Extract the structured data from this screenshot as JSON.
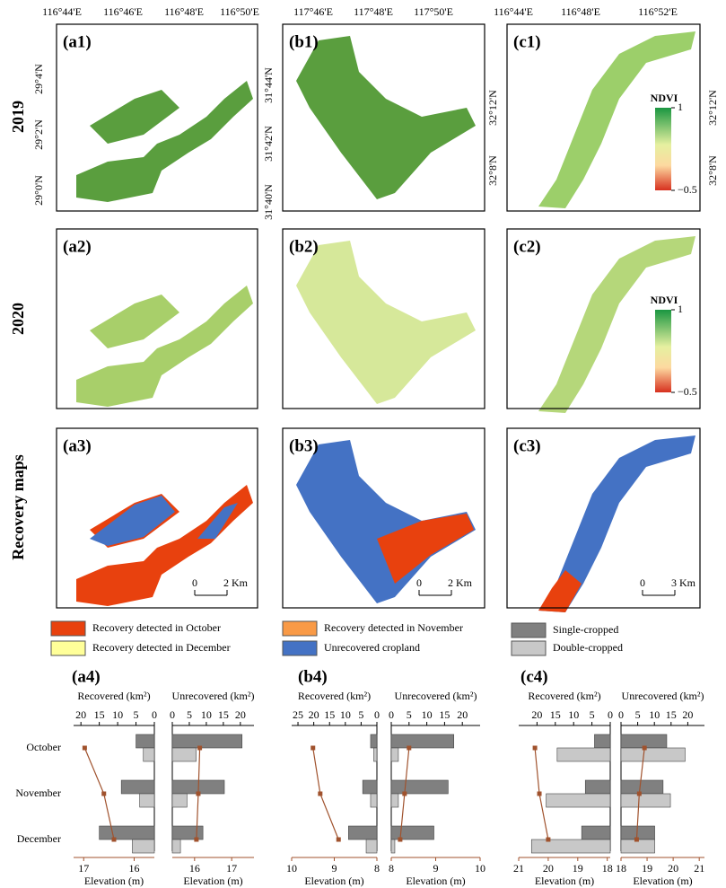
{
  "row_labels": [
    "2019",
    "2020",
    "Recovery maps"
  ],
  "panel_labels": [
    "(a1)",
    "(b1)",
    "(c1)",
    "(a2)",
    "(b2)",
    "(c2)",
    "(a3)",
    "(b3)",
    "(c3)"
  ],
  "lon_labels": [
    [
      "116°44'E",
      "116°46'E",
      "116°48'E",
      "116°50'E"
    ],
    [
      "117°46'E",
      "117°48'E",
      "117°50'E"
    ],
    [
      "116°44'E",
      "116°48'E",
      "116°52'E"
    ]
  ],
  "lat_labels": [
    [
      "29°4'N",
      "29°2'N",
      "29°0'N"
    ],
    [
      "31°44'N",
      "31°42'N",
      "31°40'N"
    ],
    [
      "32°12'N",
      "32°8'N"
    ]
  ],
  "colorbar": {
    "title": "NDVI",
    "ticks": [
      1,
      {
        "value": -0.5,
        "label": "−0.5"
      }
    ]
  },
  "scale_bars": [
    {
      "ticks": [
        0,
        {
          "value": 2,
          "label": "2 Km"
        }
      ]
    },
    {
      "ticks": [
        0,
        {
          "value": 2,
          "label": "2 Km"
        }
      ]
    },
    {
      "ticks": [
        0,
        {
          "value": 3,
          "label": "3 Km"
        }
      ]
    }
  ],
  "legend": {
    "recovery": [
      {
        "label": "Recovery detected in October",
        "color": "#e8410e"
      },
      {
        "label": "Recovery detected in December",
        "color": "#ffff99"
      },
      {
        "label": "Recovery detected in November",
        "color": "#f99a46"
      },
      {
        "label": "Unrecovered cropland",
        "color": "#4472c4"
      }
    ],
    "crop": [
      {
        "label": "Single-cropped",
        "color": "#808080"
      },
      {
        "label": "Double-cropped",
        "color": "#c8c8c8"
      }
    ]
  },
  "chart_data": [
    {
      "type": "bar",
      "title": "(a4)",
      "categories": [
        "October",
        "November",
        "December"
      ],
      "panels": [
        {
          "xlabel": "Recovered (km²)",
          "xlim": [
            22,
            0
          ],
          "xticks": [
            20,
            15,
            10,
            5,
            0
          ],
          "series": [
            {
              "color": "#808080",
              "values": [
                5,
                9,
                15
              ]
            },
            {
              "color": "#c8c8c8",
              "values": [
                3,
                4,
                6
              ]
            }
          ],
          "elevation": {
            "xlabel": "Elevation (m)",
            "xlim": [
              17.2,
              15.6
            ],
            "xticks": [
              17,
              16
            ],
            "color": "#a0522d",
            "values": [
              16.98,
              16.6,
              16.4
            ]
          }
        },
        {
          "xlabel": "Unrecovered (km²)",
          "xlim": [
            0,
            24
          ],
          "xticks": [
            0,
            5,
            10,
            15,
            20
          ],
          "series": [
            {
              "color": "#808080",
              "values": [
                20.5,
                15.3,
                9
              ]
            },
            {
              "color": "#c8c8c8",
              "values": [
                7,
                4.3,
                2.4
              ]
            }
          ],
          "elevation": {
            "xlabel": "Elevation (m)",
            "xlim": [
              15.4,
              17.6
            ],
            "xticks": [
              16,
              17
            ],
            "color": "#a0522d",
            "values": [
              16.14,
              16.1,
              16.05
            ]
          }
        }
      ]
    },
    {
      "type": "bar",
      "title": "(b4)",
      "panels": [
        {
          "xlabel": "Recovered (km²)",
          "xlim": [
            27,
            0
          ],
          "xticks": [
            25,
            20,
            15,
            10,
            5,
            0
          ],
          "series": [
            {
              "color": "#808080",
              "values": [
                2,
                4.5,
                9
              ]
            },
            {
              "color": "#c8c8c8",
              "values": [
                1,
                2,
                3.4
              ]
            }
          ],
          "elevation": {
            "xlabel": "Elevation (m)",
            "xlim": [
              10,
              8
            ],
            "xticks": [
              10,
              9,
              8
            ],
            "color": "#a0522d",
            "values": [
              9.5,
              9.33,
              8.9
            ]
          }
        },
        {
          "xlabel": "Unrecovered (km²)",
          "xlim": [
            0,
            25
          ],
          "xticks": [
            0,
            5,
            10,
            15,
            20
          ],
          "series": [
            {
              "color": "#808080",
              "values": [
                17.6,
                16,
                12
              ]
            },
            {
              "color": "#c8c8c8",
              "values": [
                2,
                2,
                1
              ]
            }
          ],
          "elevation": {
            "xlabel": "Elevation (m)",
            "xlim": [
              8,
              10
            ],
            "xticks": [
              8,
              9,
              10
            ],
            "color": "#a0522d",
            "values": [
              8.4,
              8.3,
              8.2
            ]
          }
        }
      ]
    },
    {
      "type": "bar",
      "title": "(c4)",
      "panels": [
        {
          "xlabel": "Recovered (km²)",
          "xlim": [
            25,
            0
          ],
          "xticks": [
            20,
            15,
            10,
            5,
            0
          ],
          "series": [
            {
              "color": "#808080",
              "values": [
                4.3,
                6.8,
                7.8
              ]
            },
            {
              "color": "#c8c8c8",
              "values": [
                14.5,
                17.5,
                21.5
              ]
            }
          ],
          "elevation": {
            "xlabel": "Elevation (m)",
            "xlim": [
              21,
              17.9
            ],
            "xticks": [
              21,
              20,
              19,
              18
            ],
            "color": "#a0522d",
            "values": [
              20.45,
              20.3,
              20.0
            ]
          }
        },
        {
          "xlabel": "Unrecovered (km²)",
          "xlim": [
            0,
            25
          ],
          "xticks": [
            0,
            5,
            10,
            15,
            20
          ],
          "series": [
            {
              "color": "#808080",
              "values": [
                13.7,
                12.6,
                10.1
              ]
            },
            {
              "color": "#c8c8c8",
              "values": [
                19.2,
                14.8,
                10.1
              ]
            }
          ],
          "elevation": {
            "xlabel": "Elevation (m)",
            "xlim": [
              18,
              21.2
            ],
            "xticks": [
              18,
              19,
              20,
              21
            ],
            "color": "#a0522d",
            "values": [
              18.9,
              18.7,
              18.6
            ]
          }
        }
      ]
    }
  ]
}
